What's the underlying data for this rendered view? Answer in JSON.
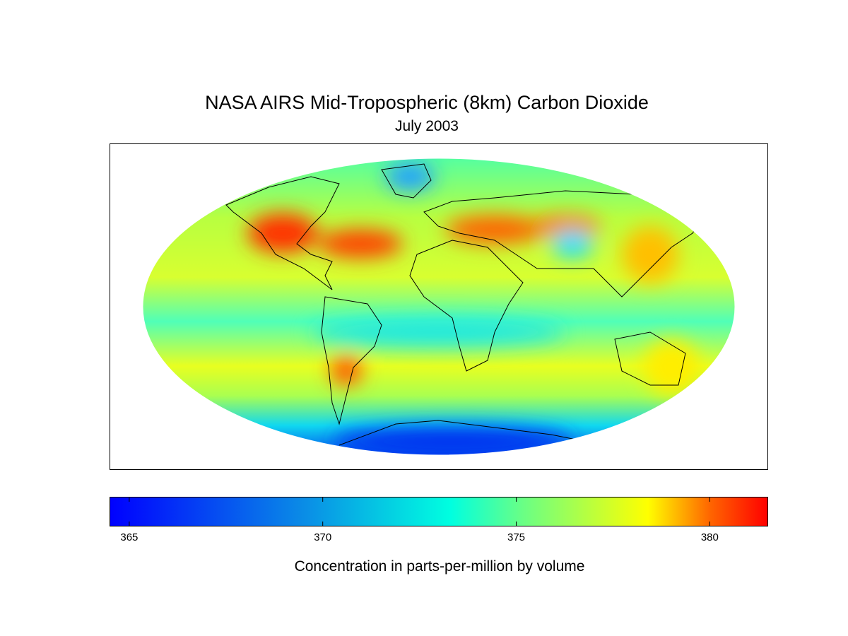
{
  "title": "NASA AIRS Mid-Tropospheric (8km) Carbon Dioxide",
  "subtitle": "July 2003",
  "colorbar": {
    "label": "Concentration in parts-per-million by volume",
    "ticks": [
      "365",
      "370",
      "375",
      "380"
    ],
    "range": [
      364.5,
      381.5
    ],
    "colormap": [
      {
        "v": 364.5,
        "c": "#0000ff"
      },
      {
        "v": 369.5,
        "c": "#0a8ce6"
      },
      {
        "v": 373.3,
        "c": "#00ffe0"
      },
      {
        "v": 375.1,
        "c": "#66ff88"
      },
      {
        "v": 378.4,
        "c": "#ffff00"
      },
      {
        "v": 380.0,
        "c": "#ff6600"
      },
      {
        "v": 381.5,
        "c": "#ff0000"
      }
    ]
  },
  "chart_data": {
    "type": "heatmap",
    "projection": "mollweide",
    "variable": "Mid-tropospheric CO2",
    "units": "ppmv",
    "regions_high": [
      "western North America",
      "North Atlantic",
      "Mediterranean / Middle East",
      "Argentina",
      "East Asia"
    ],
    "regions_low": [
      "Antarctica",
      "Arctic near Greenland",
      "Central Asia",
      "Equatorial band"
    ],
    "coastlines": true
  }
}
